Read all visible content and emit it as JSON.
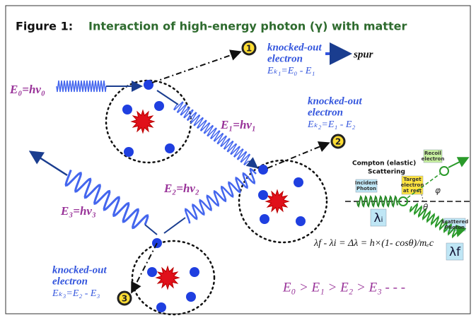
{
  "header": {
    "figure": "Figure 1:",
    "title": "Interaction of high-energy photon (γ) with matter"
  },
  "photons": [
    {
      "label": "E₀=hν₀"
    },
    {
      "label": "E₁=hν₁"
    },
    {
      "label": "E₂=hν₂"
    },
    {
      "label": "E₃=hν₃"
    }
  ],
  "electrons": [
    {
      "number": "1",
      "lines": [
        "knocked-out",
        "electron"
      ],
      "energy": "Eₖ₁=E₀ - E₁"
    },
    {
      "number": "2",
      "lines": [
        "knocked-out",
        "electron"
      ],
      "energy": "Eₖ₂=E₁ - E₂"
    },
    {
      "number": "3",
      "lines": [
        "knocked-out",
        "electron"
      ],
      "energy": "Eₖ₃=E₂ - E₃"
    }
  ],
  "spur": "spur",
  "compton": {
    "title_lines": [
      "Compton (elastic)",
      "Scattering"
    ],
    "incident": [
      "Incident",
      "Photon"
    ],
    "target": [
      "Target",
      "electron",
      "at rest"
    ],
    "recoil": [
      "Recoil",
      "electron"
    ],
    "scattered": [
      "Scattered",
      "Photon"
    ],
    "lambda_i": "λᵢ",
    "lambda_f": "λf",
    "phi": "φ",
    "theta": "θ",
    "formula": "λf - λi = Δλ = h×(1- cosθ)/mₑc"
  },
  "inequality": "E₀ > E₁ > E₂ > E₃ - - -"
}
